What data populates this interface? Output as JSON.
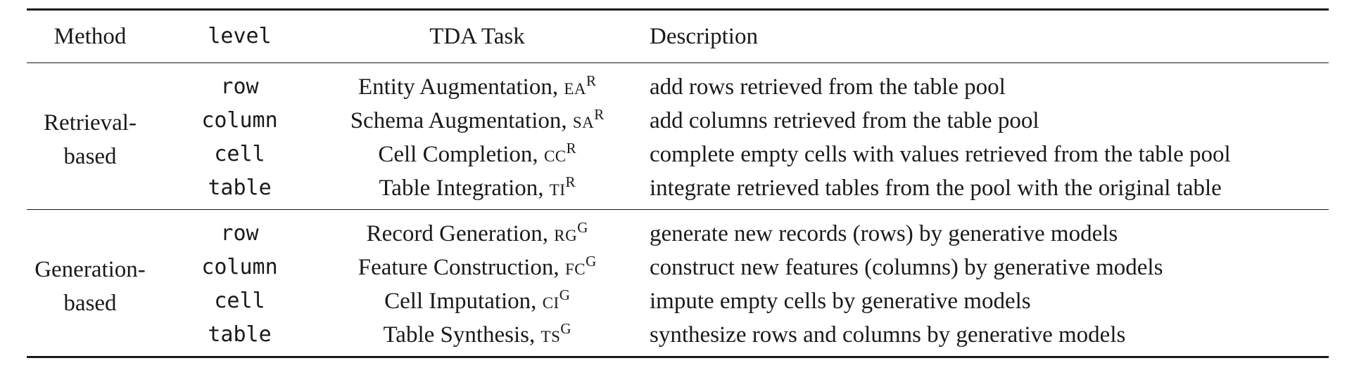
{
  "headers": {
    "method": "Method",
    "level": "level",
    "task": "TDA Task",
    "description": "Description"
  },
  "groups": [
    {
      "method_line1": "Retrieval-",
      "method_line2": "based",
      "rows": [
        {
          "level": "row",
          "task": "Entity Augmentation, ",
          "abbr": "EA",
          "sup": "R",
          "description": "add rows retrieved from the table pool"
        },
        {
          "level": "column",
          "task": "Schema Augmentation, ",
          "abbr": "SA",
          "sup": "R",
          "description": "add columns retrieved from the table pool"
        },
        {
          "level": "cell",
          "task": "Cell Completion, ",
          "abbr": "CC",
          "sup": "R",
          "description": "complete empty cells with values retrieved from the table pool"
        },
        {
          "level": "table",
          "task": "Table Integration, ",
          "abbr": "TI",
          "sup": "R",
          "description": "integrate retrieved tables from the pool with the original table"
        }
      ]
    },
    {
      "method_line1": "Generation-",
      "method_line2": "based",
      "rows": [
        {
          "level": "row",
          "task": "Record Generation, ",
          "abbr": "RG",
          "sup": "G",
          "description": "generate new records (rows) by generative models"
        },
        {
          "level": "column",
          "task": "Feature Construction, ",
          "abbr": "FC",
          "sup": "G",
          "description": "construct new features (columns) by generative models"
        },
        {
          "level": "cell",
          "task": "Cell Imputation, ",
          "abbr": "CI",
          "sup": "G",
          "description": "impute empty cells by generative models"
        },
        {
          "level": "table",
          "task": "Table Synthesis, ",
          "abbr": "TS",
          "sup": "G",
          "description": "synthesize rows and columns by generative models"
        }
      ]
    }
  ]
}
